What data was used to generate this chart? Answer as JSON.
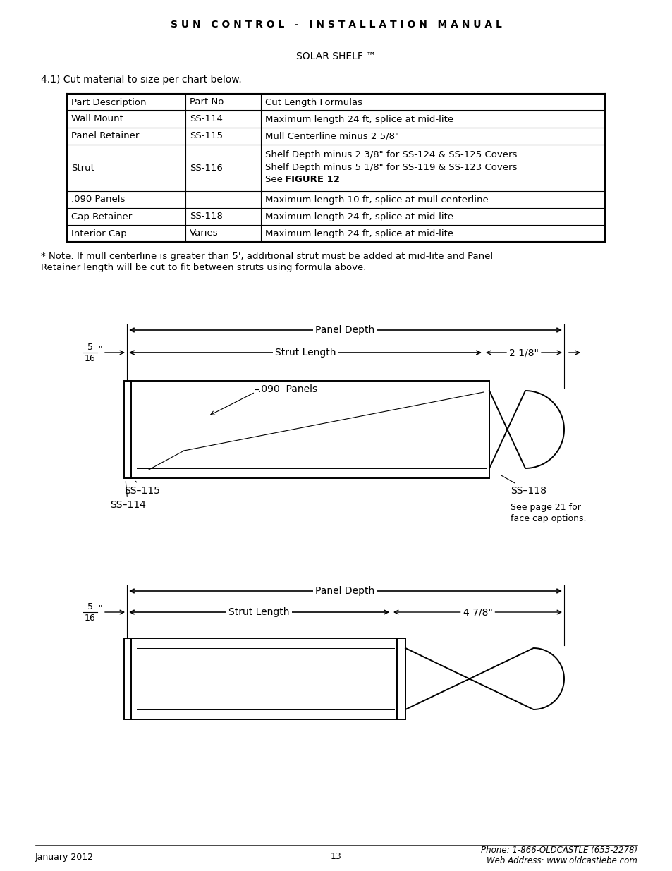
{
  "title": "S U N   C O N T R O L   -   I N S T A L L A T I O N   M A N U A L",
  "subtitle": "SOLAR SHELF ™",
  "section": "4.1) Cut material to size per chart below.",
  "table_headers": [
    "Part Description",
    "Part No.",
    "Cut Length Formulas"
  ],
  "table_rows": [
    [
      "Wall Mount",
      "SS-114",
      "Maximum length 24 ft, splice at mid-lite"
    ],
    [
      "Panel Retainer",
      "SS-115",
      "Mull Centerline minus 2 5/8\""
    ],
    [
      "Strut",
      "SS-116",
      "Shelf Depth minus 2 3/8\" for SS-124 & SS-125 Covers\nShelf Depth minus 5 1/8\" for SS-119 & SS-123 Covers\nSee FIGURE 12"
    ],
    [
      ".090 Panels",
      "",
      "Maximum length 10 ft, splice at mull centerline"
    ],
    [
      "Cap Retainer",
      "SS-118",
      "Maximum length 24 ft, splice at mid-lite"
    ],
    [
      "Interior Cap",
      "Varies",
      "Maximum length 24 ft, splice at mid-lite"
    ]
  ],
  "note_line1": "* Note: If mull centerline is greater than 5', additional strut must be added at mid-lite and Panel",
  "note_line2": "Retainer length will be cut to fit between struts using formula above.",
  "footer_left": "January 2012",
  "footer_center": "13",
  "footer_right_line1": "Phone: 1-866-OLDCASTLE (653-2278)",
  "footer_right_line2": "Web Address: www.oldcastlebe.com",
  "bg_color": "#ffffff",
  "text_color": "#000000"
}
